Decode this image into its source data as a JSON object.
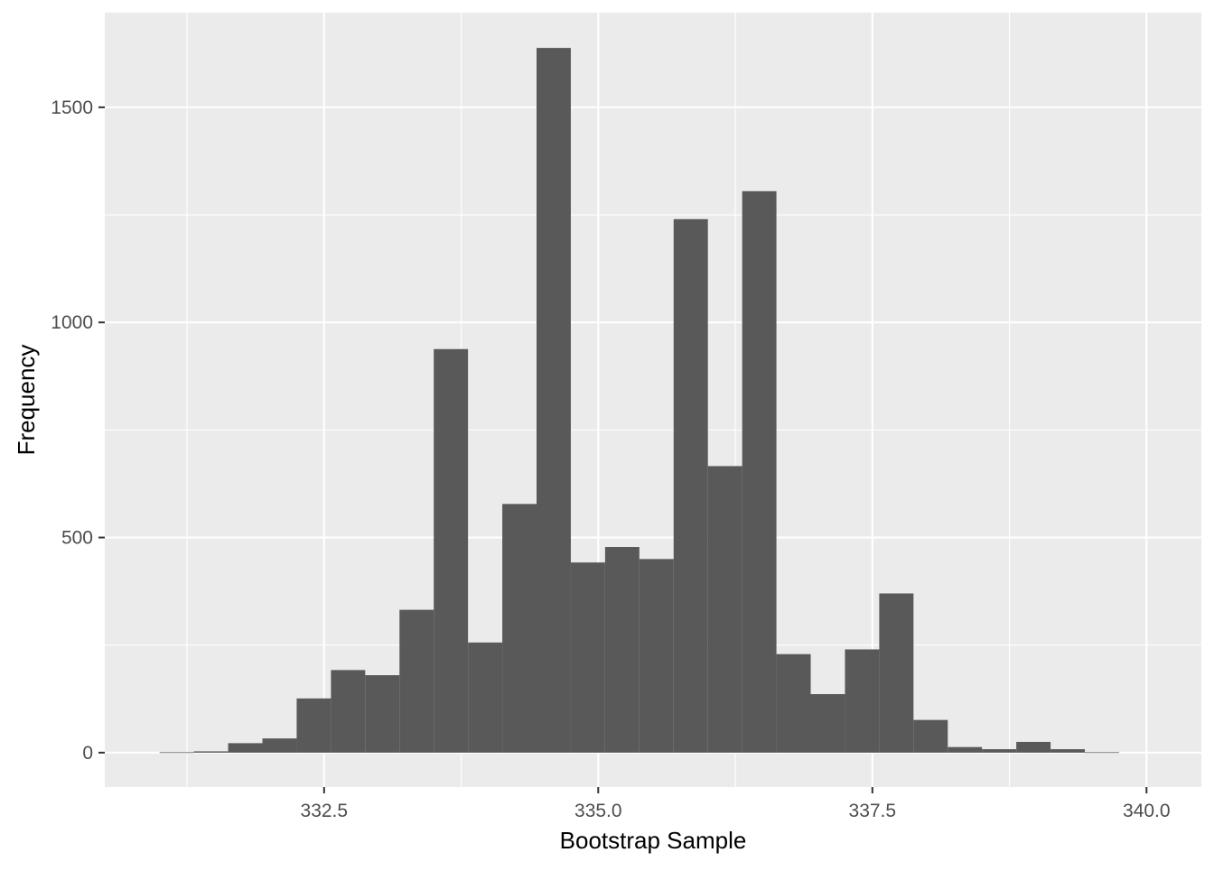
{
  "chart_data": {
    "type": "bar",
    "title": "",
    "xlabel": "Bootstrap Sample",
    "ylabel": "Frequency",
    "xlim": [
      330.5,
      340.5
    ],
    "ylim": [
      -80,
      1720
    ],
    "x_ticks": [
      332.5,
      335.0,
      337.5,
      340.0
    ],
    "x_tick_labels": [
      "332.5",
      "335.0",
      "337.5",
      "340.0"
    ],
    "y_ticks": [
      0,
      500,
      1000,
      1500
    ],
    "y_tick_labels": [
      "0",
      "500",
      "1000",
      "1500"
    ],
    "grid": true,
    "bin_width": 0.3125,
    "bins": [
      {
        "x0": 331.0,
        "x1": 331.3125,
        "count": 1
      },
      {
        "x0": 331.3125,
        "x1": 331.625,
        "count": 3
      },
      {
        "x0": 331.625,
        "x1": 331.9375,
        "count": 22
      },
      {
        "x0": 331.9375,
        "x1": 332.25,
        "count": 33
      },
      {
        "x0": 332.25,
        "x1": 332.5625,
        "count": 126
      },
      {
        "x0": 332.5625,
        "x1": 332.875,
        "count": 192
      },
      {
        "x0": 332.875,
        "x1": 333.1875,
        "count": 180
      },
      {
        "x0": 333.1875,
        "x1": 333.5,
        "count": 332
      },
      {
        "x0": 333.5,
        "x1": 333.8125,
        "count": 938
      },
      {
        "x0": 333.8125,
        "x1": 334.125,
        "count": 256
      },
      {
        "x0": 334.125,
        "x1": 334.4375,
        "count": 578
      },
      {
        "x0": 334.4375,
        "x1": 334.75,
        "count": 1638
      },
      {
        "x0": 334.75,
        "x1": 335.0625,
        "count": 442
      },
      {
        "x0": 335.0625,
        "x1": 335.375,
        "count": 478
      },
      {
        "x0": 335.375,
        "x1": 335.6875,
        "count": 450
      },
      {
        "x0": 335.6875,
        "x1": 336.0,
        "count": 1240
      },
      {
        "x0": 336.0,
        "x1": 336.3125,
        "count": 666
      },
      {
        "x0": 336.3125,
        "x1": 336.625,
        "count": 1305
      },
      {
        "x0": 336.625,
        "x1": 336.9375,
        "count": 229
      },
      {
        "x0": 336.9375,
        "x1": 337.25,
        "count": 136
      },
      {
        "x0": 337.25,
        "x1": 337.5625,
        "count": 240
      },
      {
        "x0": 337.5625,
        "x1": 337.875,
        "count": 370
      },
      {
        "x0": 337.875,
        "x1": 338.1875,
        "count": 76
      },
      {
        "x0": 338.1875,
        "x1": 338.5,
        "count": 13
      },
      {
        "x0": 338.5,
        "x1": 338.8125,
        "count": 8
      },
      {
        "x0": 338.8125,
        "x1": 339.125,
        "count": 25
      },
      {
        "x0": 339.125,
        "x1": 339.4375,
        "count": 8
      },
      {
        "x0": 339.4375,
        "x1": 339.75,
        "count": 1
      }
    ],
    "colors": {
      "panel_background": "#EBEBEB",
      "grid": "#FFFFFF",
      "bar_fill": "#595959",
      "tick_text": "#4D4D4D",
      "axis_title_text": "#000000",
      "tick_mark": "#333333"
    }
  }
}
